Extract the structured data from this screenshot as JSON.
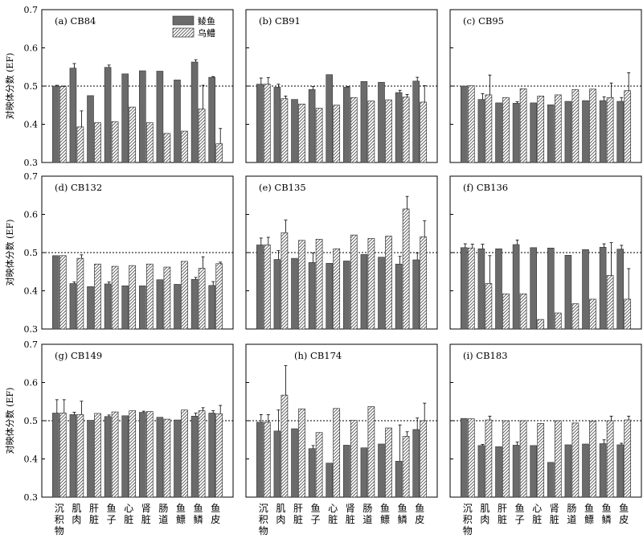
{
  "chart_data": {
    "type": "bar",
    "ylabel": "对映体分数 (EF)",
    "ylim": [
      0.3,
      0.7
    ],
    "yticks": [
      "0.3",
      "0.4",
      "0.5",
      "0.6",
      "0.7"
    ],
    "reference_line": 0.5,
    "categories": [
      "沉积物",
      "肌肉",
      "肝脏",
      "鱼子",
      "心脏",
      "肾脏",
      "肠道",
      "鱼鳔",
      "鱼鳞",
      "鱼皮"
    ],
    "legend": {
      "placement": "top-right of panel (a)",
      "series": [
        "鲮鱼",
        "乌鳢"
      ]
    },
    "colors": {
      "series_1": "#6b6b6b",
      "series_2_hatch": "#555555"
    },
    "panels": [
      {
        "label": "(a) CB84",
        "series": [
          {
            "name": "鲮鱼",
            "values": [
              0.5,
              0.547,
              0.475,
              0.549,
              0.532,
              0.54,
              0.539,
              0.516,
              0.563,
              0.523
            ],
            "errors": [
              0.002,
              0.012,
              0,
              0.006,
              0,
              0,
              0,
              0,
              0.006,
              0.002
            ]
          },
          {
            "name": "乌鳢",
            "values": [
              0.499,
              0.393,
              0.404,
              0.407,
              0.445,
              0.404,
              0.376,
              0.382,
              0.44,
              0.349
            ],
            "errors": [
              0.001,
              0.042,
              0,
              0,
              0,
              0,
              0,
              0,
              0.062,
              0.04
            ]
          }
        ]
      },
      {
        "label": "(b) CB91",
        "series": [
          {
            "name": "鲮鱼",
            "values": [
              0.505,
              0.497,
              0.465,
              0.491,
              0.53,
              0.497,
              0.512,
              0.51,
              0.483,
              0.513
            ],
            "errors": [
              0.016,
              0.008,
              0,
              0.008,
              0,
              0.002,
              0,
              0,
              0.006,
              0.01
            ]
          },
          {
            "name": "乌鳢",
            "values": [
              0.505,
              0.467,
              0.453,
              0.442,
              0.45,
              0.47,
              0.461,
              0.464,
              0.471,
              0.458
            ],
            "errors": [
              0.017,
              0.007,
              0,
              0,
              0,
              0,
              0,
              0,
              0.007,
              0.043
            ]
          }
        ]
      },
      {
        "label": "(c) CB95",
        "series": [
          {
            "name": "鲮鱼",
            "values": [
              0.5,
              0.465,
              0.456,
              0.455,
              0.456,
              0.451,
              0.46,
              0.462,
              0.462,
              0.46
            ],
            "errors": [
              0,
              0.015,
              0,
              0.004,
              0,
              0,
              0,
              0,
              0.01,
              0.01
            ]
          },
          {
            "name": "乌鳢",
            "values": [
              0.501,
              0.477,
              0.47,
              0.493,
              0.474,
              0.477,
              0.491,
              0.492,
              0.47,
              0.488
            ],
            "errors": [
              0,
              0.052,
              0,
              0,
              0,
              0,
              0,
              0,
              0.038,
              0.047
            ]
          }
        ]
      },
      {
        "label": "(d) CB132",
        "series": [
          {
            "name": "鲮鱼",
            "values": [
              0.492,
              0.419,
              0.411,
              0.418,
              0.413,
              0.413,
              0.429,
              0.417,
              0.43,
              0.414
            ],
            "errors": [
              0,
              0.004,
              0,
              0.005,
              0,
              0,
              0,
              0,
              0.005,
              0.01
            ]
          },
          {
            "name": "乌鳢",
            "values": [
              0.492,
              0.485,
              0.47,
              0.464,
              0.466,
              0.47,
              0.462,
              0.477,
              0.459,
              0.471
            ],
            "errors": [
              0,
              0.009,
              0,
              0,
              0,
              0,
              0,
              0,
              0.03,
              0.004
            ]
          }
        ]
      },
      {
        "label": "(e) CB135",
        "series": [
          {
            "name": "鲮鱼",
            "values": [
              0.52,
              0.482,
              0.485,
              0.474,
              0.472,
              0.478,
              0.495,
              0.488,
              0.47,
              0.481
            ],
            "errors": [
              0.018,
              0.023,
              0,
              0.025,
              0,
              0,
              0,
              0,
              0.02,
              0.018
            ]
          },
          {
            "name": "乌鳢",
            "values": [
              0.52,
              0.552,
              0.532,
              0.535,
              0.51,
              0.546,
              0.537,
              0.543,
              0.614,
              0.541
            ],
            "errors": [
              0.02,
              0.033,
              0,
              0,
              0,
              0,
              0,
              0,
              0.033,
              0.042
            ]
          }
        ]
      },
      {
        "label": "(f) CB136",
        "series": [
          {
            "name": "鲮鱼",
            "values": [
              0.513,
              0.51,
              0.51,
              0.521,
              0.513,
              0.512,
              0.493,
              0.508,
              0.514,
              0.509
            ],
            "errors": [
              0.01,
              0.012,
              0,
              0.012,
              0,
              0,
              0,
              0,
              0.009,
              0.01
            ]
          },
          {
            "name": "乌鳢",
            "values": [
              0.512,
              0.419,
              0.392,
              0.392,
              0.325,
              0.342,
              0.366,
              0.378,
              0.44,
              0.378
            ],
            "errors": [
              0.01,
              0.073,
              0,
              0,
              0,
              0,
              0,
              0,
              0.086,
              0.08
            ]
          }
        ]
      },
      {
        "label": "(g) CB149",
        "series": [
          {
            "name": "鲮鱼",
            "values": [
              0.52,
              0.516,
              0.501,
              0.511,
              0.513,
              0.522,
              0.509,
              0.502,
              0.512,
              0.52
            ],
            "errors": [
              0.035,
              0.006,
              0,
              0.004,
              0,
              0.003,
              0,
              0,
              0.008,
              0.006
            ]
          },
          {
            "name": "乌鳢",
            "values": [
              0.52,
              0.516,
              0.519,
              0.523,
              0.526,
              0.524,
              0.504,
              0.528,
              0.526,
              0.518
            ],
            "errors": [
              0.035,
              0.035,
              0,
              0,
              0,
              0,
              0,
              0,
              0.008,
              0.022
            ]
          }
        ]
      },
      {
        "label": "(h) CB174",
        "series": [
          {
            "name": "鲮鱼",
            "values": [
              0.496,
              0.473,
              0.479,
              0.427,
              0.389,
              0.436,
              0.429,
              0.439,
              0.394,
              0.477
            ],
            "errors": [
              0.02,
              0.055,
              0,
              0.008,
              0,
              0,
              0,
              0,
              0.095,
              0.03
            ]
          },
          {
            "name": "乌鳢",
            "values": [
              0.496,
              0.567,
              0.531,
              0.469,
              0.532,
              0.501,
              0.537,
              0.481,
              0.459,
              0.5
            ],
            "errors": [
              0.02,
              0.077,
              0,
              0,
              0,
              0,
              0,
              0,
              0.012,
              0.046
            ]
          }
        ]
      },
      {
        "label": "(i) CB183",
        "series": [
          {
            "name": "鲮鱼",
            "values": [
              0.506,
              0.435,
              0.432,
              0.436,
              0.435,
              0.391,
              0.437,
              0.439,
              0.44,
              0.437
            ],
            "errors": [
              0,
              0.003,
              0,
              0.008,
              0,
              0,
              0,
              0,
              0.01,
              0.004
            ]
          },
          {
            "name": "乌鳢",
            "values": [
              0.505,
              0.502,
              0.5,
              0.5,
              0.493,
              0.5,
              0.494,
              0.499,
              0.5,
              0.502
            ],
            "errors": [
              0,
              0.01,
              0,
              0,
              0,
              0,
              0,
              0,
              0.012,
              0.01
            ]
          }
        ]
      }
    ]
  }
}
